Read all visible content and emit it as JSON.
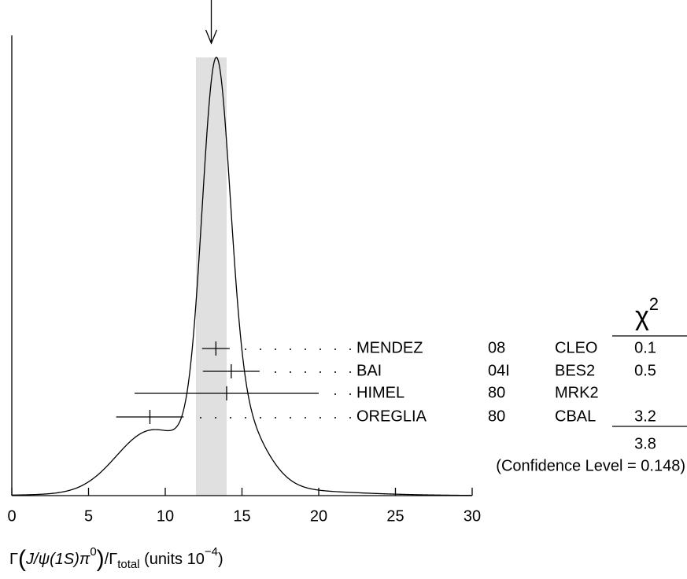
{
  "chart_data": {
    "type": "ideogram",
    "x_label_parts": [
      "Γ",
      "(",
      "J/ψ(1S)π",
      "0",
      ")",
      "/Γ",
      "total",
      " (units 10",
      "−4",
      ")"
    ],
    "xlim": [
      0,
      30
    ],
    "xticks": [
      0,
      5,
      10,
      15,
      20,
      25,
      30
    ],
    "average": {
      "value": 13.0,
      "error": 1.0
    },
    "chi2_header": [
      "χ",
      "2"
    ],
    "measurements": [
      {
        "name": "MENDEZ",
        "year": "08",
        "experiment": "CLEO",
        "value": 13.3,
        "error": 0.9,
        "chi2": 0.1
      },
      {
        "name": "BAI",
        "year": "04I",
        "experiment": "BES2",
        "value": 14.3,
        "error": 1.85,
        "chi2": 0.5
      },
      {
        "name": "HIMEL",
        "year": "80",
        "experiment": "MRK2",
        "value": 14.0,
        "error": 6.0,
        "chi2": null
      },
      {
        "name": "OREGLIA",
        "year": "80",
        "experiment": "CBAL",
        "value": 9.0,
        "error": 2.2,
        "chi2": 3.2
      }
    ],
    "chi2_total": 3.8,
    "confidence_level_text": "(Confidence Level = 0.148)"
  }
}
